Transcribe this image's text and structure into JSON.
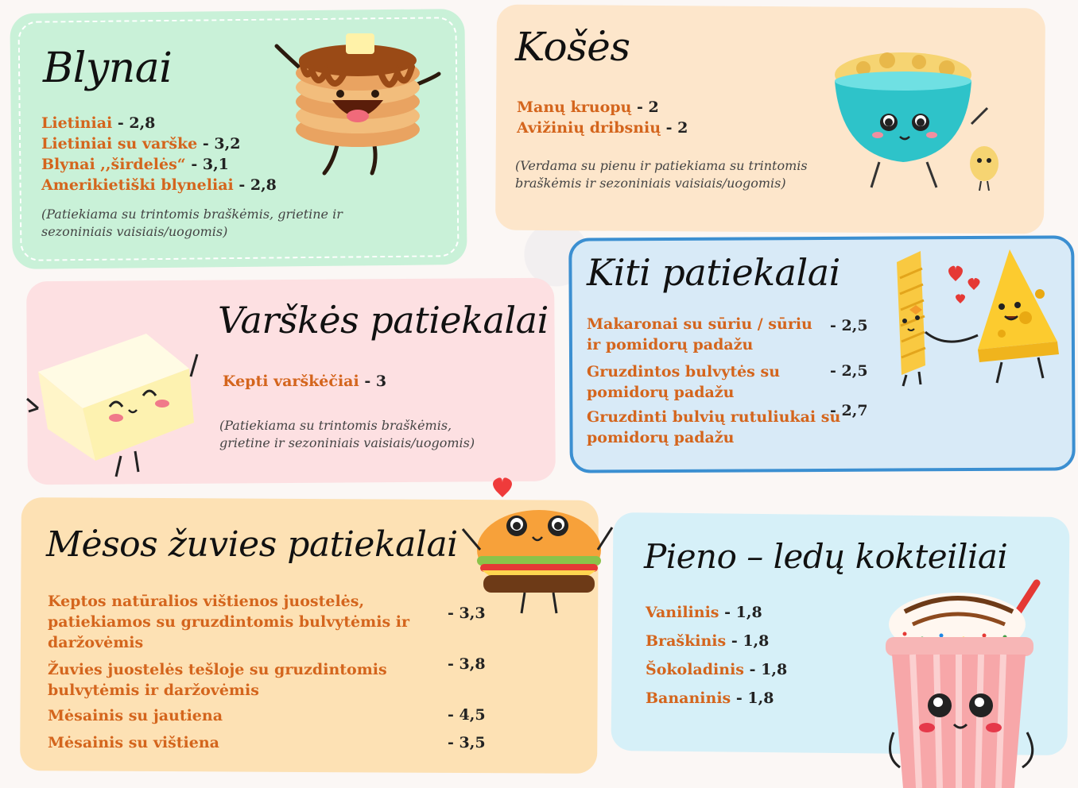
{
  "colors": {
    "item_name": "#d4651d",
    "panel_green": "#c9f1d8",
    "panel_peach": "#fde6cb",
    "panel_pink": "#fde0e2",
    "panel_blue": "#d8eaf7",
    "panel_orange": "#fde1b4",
    "panel_cyan": "#d6f0f8"
  },
  "blynai": {
    "title": "Blynai",
    "items": [
      {
        "name": "Lietiniai",
        "price": " - 2,8"
      },
      {
        "name": "Lietiniai su varške",
        "price": " - 3,2"
      },
      {
        "name": "Blynai ,,širdelės“",
        "price": " - 3,1"
      },
      {
        "name": "Amerikietiški blyneliai",
        "price": " - 2,8"
      }
    ],
    "note": "(Patiekiama su trintomis braškėmis, grietine ir sezoniniais vaisiais/uogomis)",
    "icon": "pancake-stack-icon"
  },
  "koses": {
    "title": "Košės",
    "items": [
      {
        "name": "Manų kruopų",
        "price": " - 2"
      },
      {
        "name": "Avižinių dribsnių",
        "price": " - 2"
      }
    ],
    "note": "(Verdama su pienu ir patiekiama su trintomis braškėmis ir sezoniniais vaisiais/uogomis)",
    "icon": "cereal-bowl-icon"
  },
  "varskes": {
    "title": "Varškės patiekalai",
    "items": [
      {
        "name": "Kepti varškėčiai",
        "price": " - 3"
      }
    ],
    "note": "(Patiekiama su trintomis braškėmis, grietine ir sezoniniais vaisiais/uogomis)",
    "icon": "cheese-block-icon"
  },
  "kiti": {
    "title": "Kiti patiekalai",
    "items": [
      {
        "name": "Makaronai su sūriu / sūriu ir pomidorų padažu",
        "price": "- 2,5"
      },
      {
        "name": "Gruzdintos bulvytės su pomidorų padažu",
        "price": "- 2,5"
      },
      {
        "name": "Gruzdinti bulvių rutuliukai su pomidorų padažu",
        "price": "- 2,7"
      }
    ],
    "icon": "pasta-and-cheese-icon"
  },
  "mesos": {
    "title": "Mėsos žuvies patiekalai",
    "items": [
      {
        "name": "Keptos natūralios vištienos juostelės, patiekiamos su gruzdintomis bulvytėmis ir daržovėmis",
        "price": "- 3,3"
      },
      {
        "name": "Žuvies juostelės tešloje su gruzdintomis bulvytėmis ir daržovėmis",
        "price": "- 3,8"
      },
      {
        "name": "Mėsainis su jautiena",
        "price": "- 4,5"
      },
      {
        "name": "Mėsainis su vištiena",
        "price": "- 3,5"
      }
    ],
    "icon": "burger-icon"
  },
  "pieno": {
    "title": "Pieno – ledų kokteiliai",
    "items": [
      {
        "name": "Vanilinis",
        "price": " - 1,8"
      },
      {
        "name": "Braškinis",
        "price": " - 1,8"
      },
      {
        "name": "Šokoladinis",
        "price": " - 1,8"
      },
      {
        "name": "Bananinis",
        "price": " - 1,8"
      }
    ],
    "icon": "milkshake-cup-icon"
  }
}
